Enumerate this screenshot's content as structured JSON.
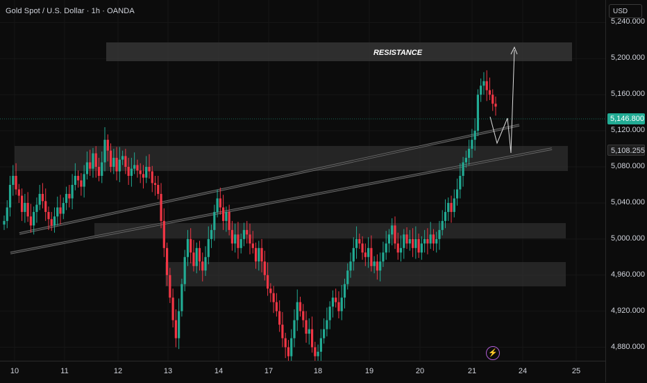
{
  "title": "Gold Spot / U.S. Dollar · 1h · OANDA",
  "currency": "USD",
  "price_ticks": [
    "5,240.000",
    "5,200.000",
    "5,160.000",
    "5,120.000",
    "5,080.000",
    "5,040.000",
    "5,000.000",
    "4,960.000",
    "4,920.000",
    "4,880.000"
  ],
  "date_ticks": [
    "10",
    "11",
    "12",
    "13",
    "14",
    "17",
    "18",
    "19",
    "20",
    "21",
    "24",
    "25"
  ],
  "current_price": "5,146.800",
  "line_price": "5,108.255",
  "annotation": "RESISTANCE",
  "flash_icon": "⚡",
  "colors": {
    "up": "#22ab94",
    "down": "#f23645",
    "current": "#22ab94",
    "line_tag": "#1e1e1e"
  },
  "chart_data": {
    "type": "candlestick",
    "title": "Gold Spot / U.S. Dollar · 1h · OANDA",
    "y_unit": "USD",
    "ylim": [
      4865,
      5265
    ],
    "x_labels": [
      "10",
      "11",
      "12",
      "13",
      "14",
      "17",
      "18",
      "19",
      "20",
      "21",
      "24",
      "25"
    ],
    "closes": [
      5020,
      5035,
      5060,
      5070,
      5055,
      5048,
      5030,
      5040,
      5025,
      5015,
      5030,
      5038,
      5050,
      5042,
      5030,
      5022,
      5015,
      5025,
      5035,
      5028,
      5040,
      5050,
      5045,
      5060,
      5070,
      5065,
      5058,
      5072,
      5085,
      5078,
      5095,
      5080,
      5070,
      5085,
      5110,
      5098,
      5080,
      5090,
      5075,
      5088,
      5092,
      5080,
      5070,
      5078,
      5082,
      5076,
      5072,
      5068,
      5080,
      5075,
      5062,
      5060,
      5050,
      5020,
      4990,
      4960,
      4935,
      4910,
      4890,
      4920,
      4950,
      4980,
      5000,
      4985,
      4970,
      4990,
      4975,
      4965,
      4980,
      5000,
      5010,
      5030,
      5045,
      5035,
      5020,
      5030,
      5010,
      4995,
      5005,
      4990,
      5000,
      5010,
      5005,
      4995,
      4990,
      4975,
      4990,
      4975,
      4960,
      4945,
      4940,
      4930,
      4920,
      4905,
      4890,
      4880,
      4870,
      4890,
      4910,
      4930,
      4920,
      4910,
      4895,
      4900,
      4880,
      4870,
      4875,
      4890,
      4900,
      4910,
      4925,
      4935,
      4930,
      4920,
      4935,
      4950,
      4965,
      4975,
      4990,
      5000,
      4995,
      4985,
      4980,
      4990,
      4970,
      4975,
      4965,
      4975,
      4985,
      4995,
      5005,
      5015,
      4995,
      4985,
      4990,
      5005,
      4995,
      5000,
      4990,
      5000,
      4985,
      4995,
      5000,
      4995,
      5005,
      4995,
      5000,
      5010,
      5020,
      5030,
      5040,
      5030,
      5045,
      5055,
      5070,
      5085,
      5090,
      5100,
      5110,
      5120,
      5160,
      5170,
      5175,
      5165,
      5160,
      5150,
      5146.8
    ]
  },
  "projection_label": ""
}
